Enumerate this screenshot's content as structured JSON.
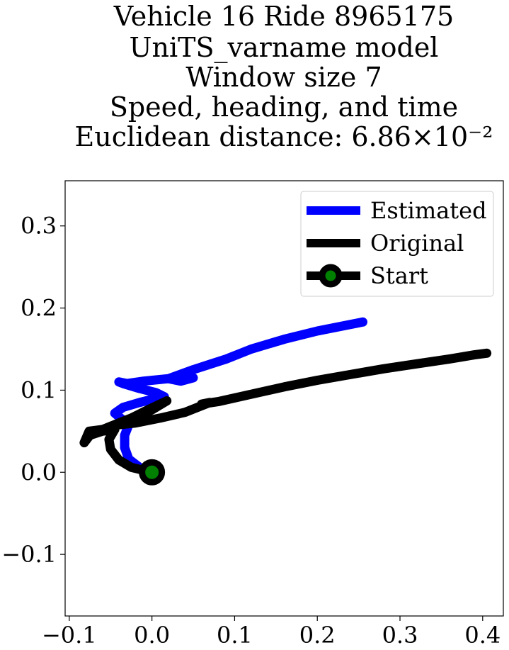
{
  "chart_data": {
    "type": "line",
    "title_lines": [
      "Vehicle 16 Ride 8965175",
      "UniTS_varname model",
      "Window size 7",
      "Speed, heading, and time",
      "Euclidean distance: 6.86×10⁻²"
    ],
    "xlabel": "",
    "ylabel": "",
    "xlim": [
      -0.105,
      0.425
    ],
    "ylim": [
      -0.175,
      0.355
    ],
    "x_ticks": [
      -0.1,
      0.0,
      0.1,
      0.2,
      0.3,
      0.4
    ],
    "x_tick_labels": [
      "−0.1",
      "0.0",
      "0.1",
      "0.2",
      "0.3",
      "0.4"
    ],
    "y_ticks": [
      -0.1,
      0.0,
      0.1,
      0.2,
      0.3
    ],
    "y_tick_labels": [
      "−0.1",
      "0.0",
      "0.1",
      "0.2",
      "0.3"
    ],
    "grid": false,
    "legend_position": "top-right",
    "series": [
      {
        "name": "Estimated",
        "color": "#0000ff",
        "points": [
          [
            0.0,
            0.0
          ],
          [
            -0.015,
            0.006
          ],
          [
            -0.028,
            0.016
          ],
          [
            -0.033,
            0.03
          ],
          [
            -0.033,
            0.045
          ],
          [
            -0.028,
            0.058
          ],
          [
            -0.038,
            0.066
          ],
          [
            -0.045,
            0.072
          ],
          [
            -0.035,
            0.079
          ],
          [
            -0.015,
            0.085
          ],
          [
            0.005,
            0.09
          ],
          [
            0.015,
            0.092
          ],
          [
            0.005,
            0.097
          ],
          [
            -0.015,
            0.102
          ],
          [
            -0.035,
            0.108
          ],
          [
            -0.04,
            0.11
          ],
          [
            -0.03,
            0.108
          ],
          [
            -0.01,
            0.111
          ],
          [
            0.02,
            0.114
          ],
          [
            0.045,
            0.118
          ],
          [
            0.05,
            0.115
          ],
          [
            0.035,
            0.111
          ],
          [
            0.02,
            0.114
          ],
          [
            0.05,
            0.125
          ],
          [
            0.09,
            0.138
          ],
          [
            0.12,
            0.15
          ],
          [
            0.16,
            0.162
          ],
          [
            0.2,
            0.172
          ],
          [
            0.24,
            0.18
          ],
          [
            0.255,
            0.183
          ]
        ]
      },
      {
        "name": "Original",
        "color": "#000000",
        "points": [
          [
            0.0,
            0.0
          ],
          [
            -0.025,
            0.006
          ],
          [
            -0.04,
            0.015
          ],
          [
            -0.05,
            0.028
          ],
          [
            -0.052,
            0.04
          ],
          [
            -0.045,
            0.052
          ],
          [
            -0.06,
            0.05
          ],
          [
            -0.075,
            0.045
          ],
          [
            -0.082,
            0.036
          ],
          [
            -0.076,
            0.05
          ],
          [
            -0.06,
            0.052
          ],
          [
            -0.045,
            0.058
          ],
          [
            -0.025,
            0.066
          ],
          [
            -0.005,
            0.076
          ],
          [
            0.018,
            0.087
          ],
          [
            0.0,
            0.076
          ],
          [
            -0.02,
            0.066
          ],
          [
            -0.04,
            0.058
          ],
          [
            -0.02,
            0.06
          ],
          [
            0.01,
            0.066
          ],
          [
            0.04,
            0.073
          ],
          [
            0.07,
            0.085
          ],
          [
            0.06,
            0.083
          ],
          [
            0.08,
            0.086
          ],
          [
            0.12,
            0.095
          ],
          [
            0.16,
            0.104
          ],
          [
            0.2,
            0.112
          ],
          [
            0.24,
            0.119
          ],
          [
            0.28,
            0.126
          ],
          [
            0.32,
            0.132
          ],
          [
            0.36,
            0.138
          ],
          [
            0.39,
            0.143
          ],
          [
            0.405,
            0.145
          ]
        ]
      }
    ],
    "start": {
      "name": "Start",
      "x": 0.0,
      "y": 0.0,
      "marker_color": "#000000",
      "center_color": "#008000"
    }
  }
}
